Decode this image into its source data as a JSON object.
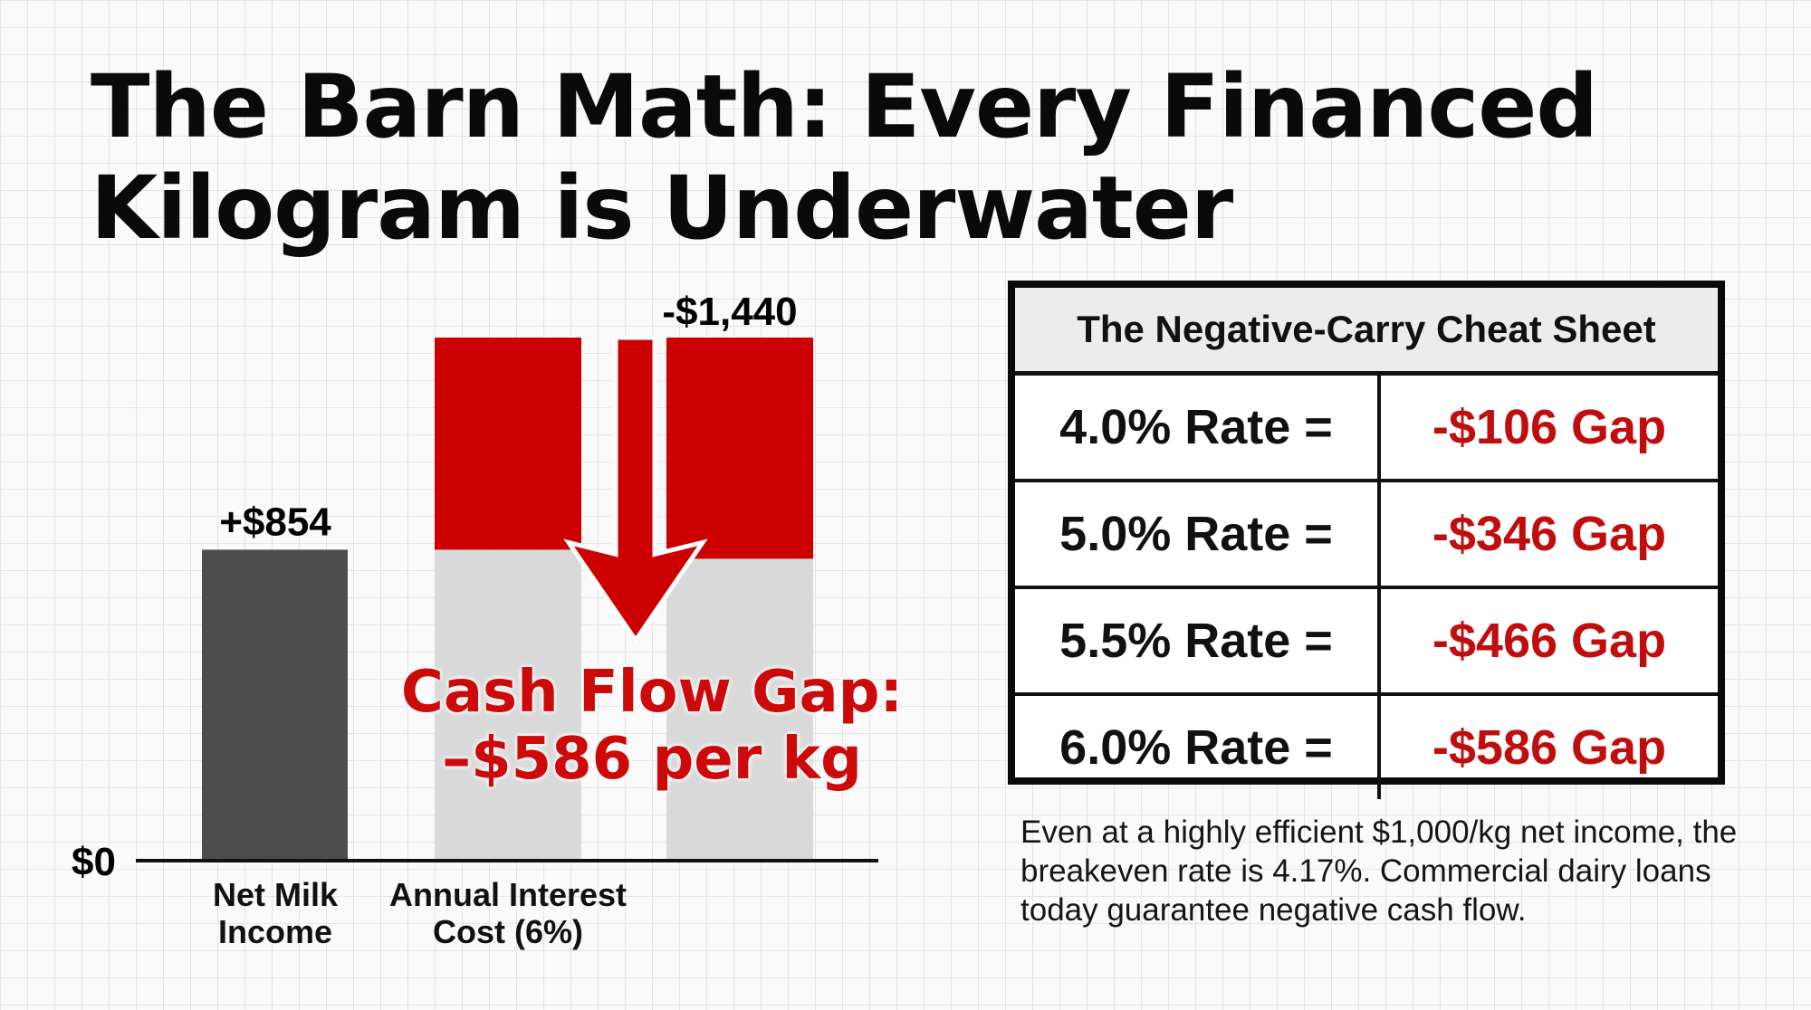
{
  "title": {
    "line1": "The Barn Math: Every Financed",
    "line2": "Kilogram is Underwater"
  },
  "chart_data": {
    "type": "bar",
    "categories": [
      {
        "line1": "Net Milk",
        "line2": "Income"
      },
      {
        "line1": "Annual Interest",
        "line2": "Cost (6%)"
      }
    ],
    "values": [
      854,
      1440
    ],
    "stack_of_second": {
      "offset_by_income": 854,
      "gap": 586
    },
    "data_labels": [
      "+$854",
      "-$1,440"
    ],
    "y_tick_label": "$0",
    "annotation": {
      "line1": "Cash Flow Gap:",
      "line2": "–$586 per kg"
    },
    "colors": {
      "income": "#4d4d4d",
      "interest_red": "#cc0000",
      "interest_gray": "#d9d9d9",
      "axis": "#111111"
    }
  },
  "table": {
    "title": "The Negative-Carry Cheat Sheet",
    "rows": [
      {
        "rate": "4.0% Rate =",
        "gap": "-$106 Gap"
      },
      {
        "rate": "5.0% Rate =",
        "gap": "-$346 Gap"
      },
      {
        "rate": "5.5% Rate =",
        "gap": "-$466 Gap"
      },
      {
        "rate": "6.0% Rate =",
        "gap": "-$586 Gap"
      }
    ]
  },
  "note": "Even at a highly efficient $1,000/kg net income, the breakeven rate is 4.17%. Commercial dairy loans today guarantee negative cash flow."
}
